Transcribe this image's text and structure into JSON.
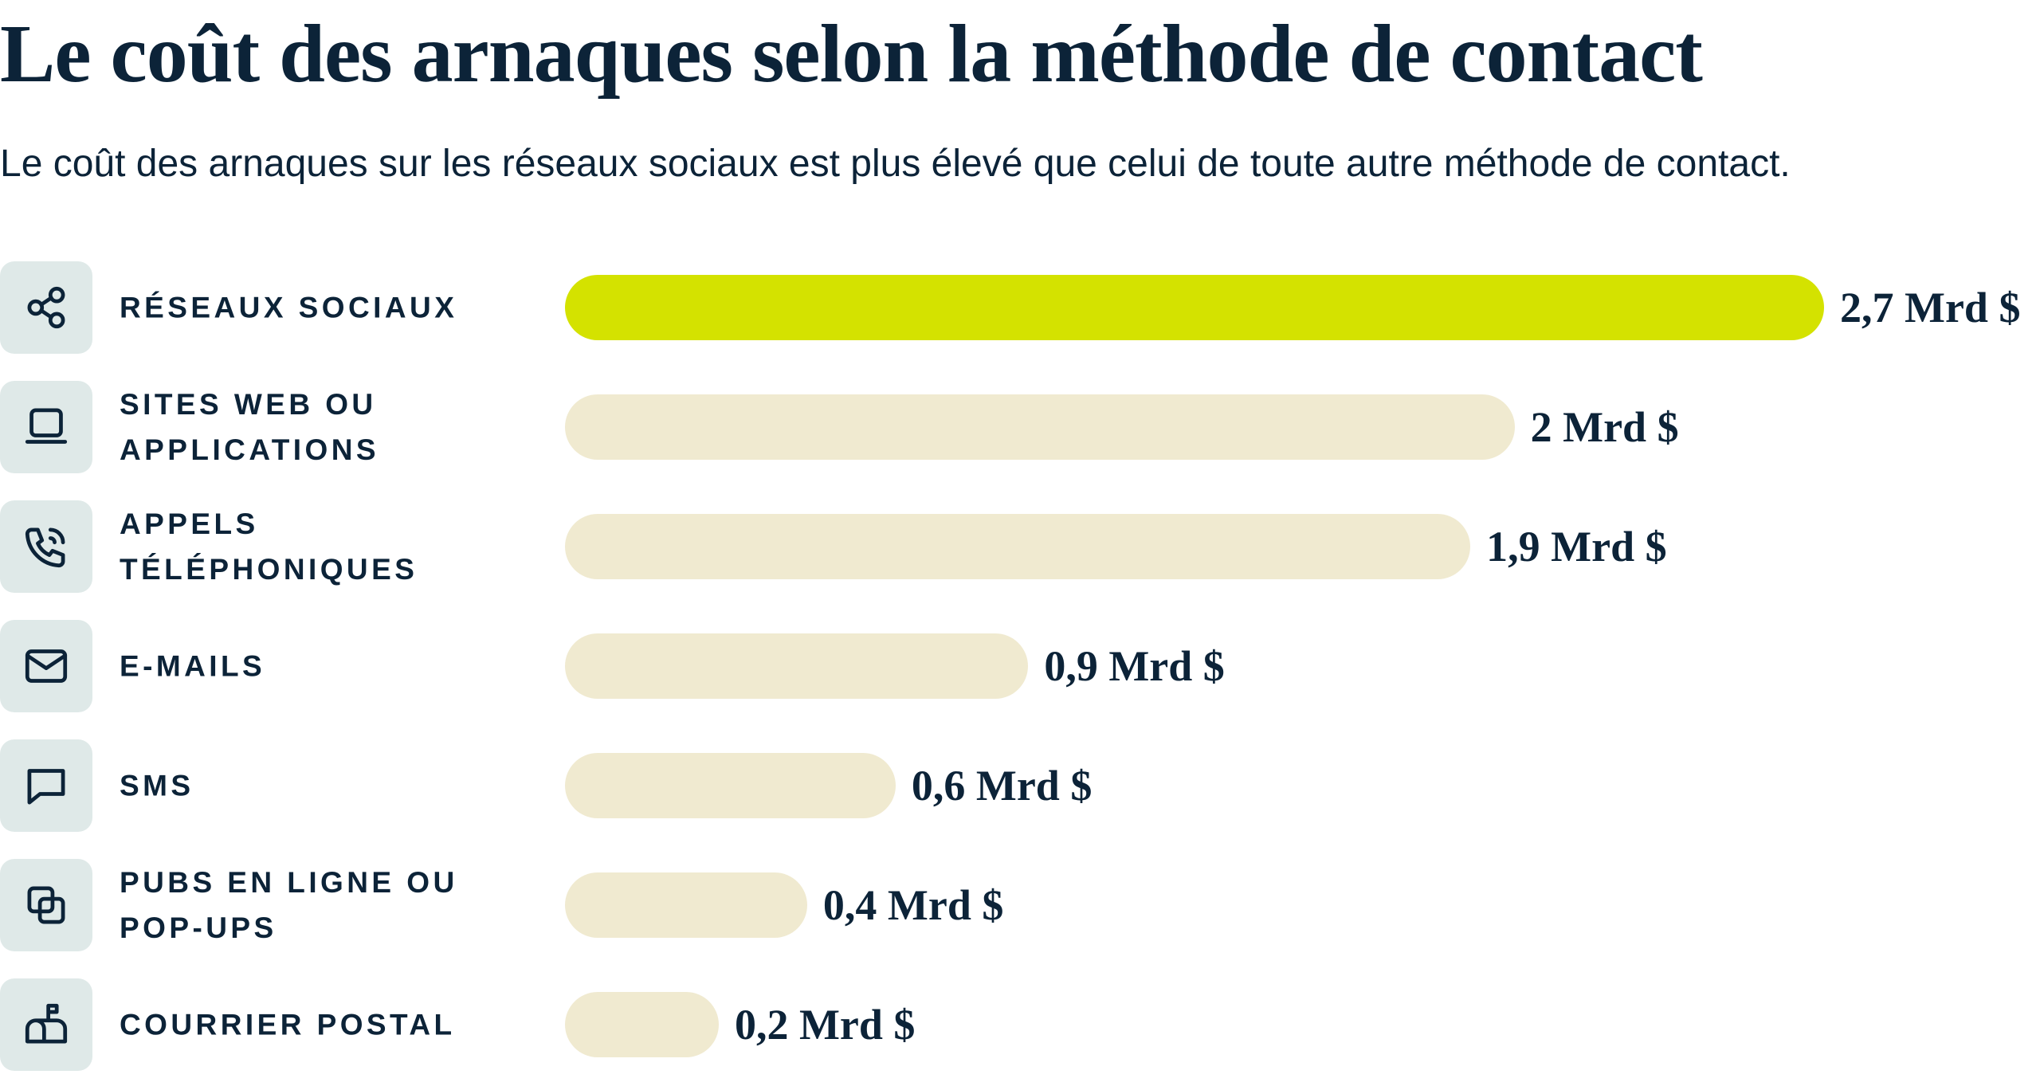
{
  "chart_data": {
    "type": "bar",
    "title": "Le coût des arnaques selon la méthode de contact",
    "subtitle": "Le coût des arnaques sur les réseaux sociaux est plus élevé que celui de toute autre méthode de contact.",
    "categories": [
      "RÉSEAUX SOCIAUX",
      "SITES WEB OU APPLICATIONS",
      "APPELS TÉLÉPHONIQUES",
      "E-MAILS",
      "SMS",
      "PUBS EN LIGNE OU POP-UPS",
      "COURRIER POSTAL"
    ],
    "values": [
      2.7,
      2,
      1.9,
      0.9,
      0.6,
      0.4,
      0.2
    ],
    "value_labels": [
      "2,7 Mrd $",
      "2 Mrd $",
      "1,9 Mrd $",
      "0,9 Mrd $",
      "0,6 Mrd $",
      "0,4 Mrd $",
      "0,2 Mrd $"
    ],
    "colors": [
      "#d4e200",
      "#f0ead0",
      "#f0ead0",
      "#f0ead0",
      "#f0ead0",
      "#f0ead0",
      "#f0ead0"
    ]
  }
}
